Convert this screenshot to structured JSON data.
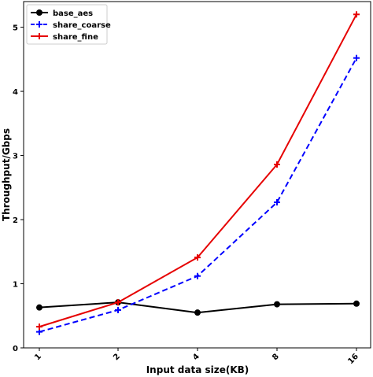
{
  "chart_data": {
    "type": "line",
    "categories": [
      "1",
      "2",
      "4",
      "8",
      "16"
    ],
    "xlabel": "Input data size(KB)",
    "ylabel": "Throughput/Gbps",
    "ylim": [
      0,
      5.4
    ],
    "yticks": [
      "0",
      "1",
      "2",
      "3",
      "4",
      "5"
    ],
    "grid": false,
    "legend_position": "top-left",
    "series": [
      {
        "name": "base_aes",
        "values": [
          0.63,
          0.71,
          0.55,
          0.68,
          0.69
        ],
        "color": "#000000",
        "marker": "circle",
        "style": "solid"
      },
      {
        "name": "share_coarse",
        "values": [
          0.25,
          0.59,
          1.12,
          2.27,
          4.52
        ],
        "color": "#0000ff",
        "marker": "plus",
        "style": "dashed"
      },
      {
        "name": "share_fine",
        "values": [
          0.33,
          0.71,
          1.41,
          2.86,
          5.2
        ],
        "color": "#e60000",
        "marker": "plus",
        "style": "solid"
      }
    ]
  }
}
